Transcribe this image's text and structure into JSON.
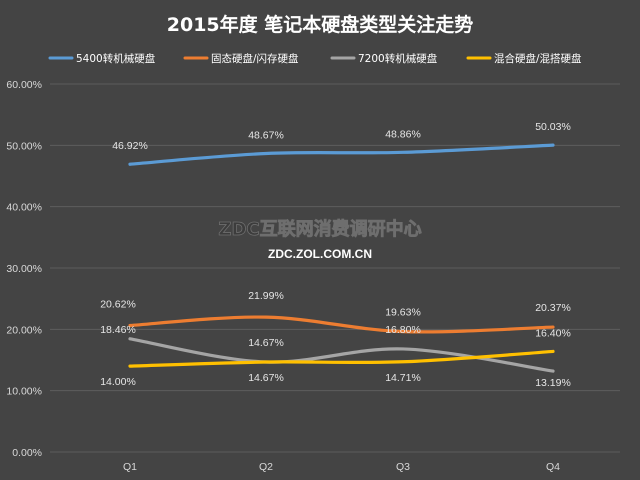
{
  "chart_data": {
    "type": "line",
    "title": "2015年度 笔记本硬盘类型关注走势",
    "categories": [
      "Q1",
      "Q2",
      "Q3",
      "Q4"
    ],
    "ylim": [
      0,
      60
    ],
    "yticks": [
      0,
      10,
      20,
      30,
      40,
      50,
      60
    ],
    "ytick_labels": [
      "0.00%",
      "10.00%",
      "20.00%",
      "30.00%",
      "40.00%",
      "50.00%",
      "60.00%"
    ],
    "grid": true,
    "legend_position": "top",
    "series": [
      {
        "name": "5400转机械硬盘",
        "color": "#5b9bd5",
        "values": [
          46.92,
          48.67,
          48.86,
          50.03
        ],
        "labels": [
          "46.92%",
          "48.67%",
          "48.86%",
          "50.03%"
        ]
      },
      {
        "name": "固态硬盘/闪存硬盘",
        "color": "#ed7d31",
        "values": [
          20.62,
          21.99,
          19.63,
          20.37
        ],
        "labels": [
          "20.62%",
          "21.99%",
          "19.63%",
          "20.37%"
        ]
      },
      {
        "name": "7200转机械硬盘",
        "color": "#a5a5a5",
        "values": [
          18.46,
          14.67,
          16.8,
          13.19
        ],
        "labels": [
          "18.46%",
          "14.67%",
          "16.80%",
          "13.19%"
        ]
      },
      {
        "name": "混合硬盘/混搭硬盘",
        "color": "#ffc000",
        "values": [
          14.0,
          14.67,
          14.71,
          16.4
        ],
        "labels": [
          "14.00%",
          "14.67%",
          "14.71%",
          "16.40%"
        ]
      }
    ]
  },
  "watermark": {
    "main": "ZDC互联网消费调研中心",
    "sub": "ZDC.ZOL.COM.CN"
  }
}
